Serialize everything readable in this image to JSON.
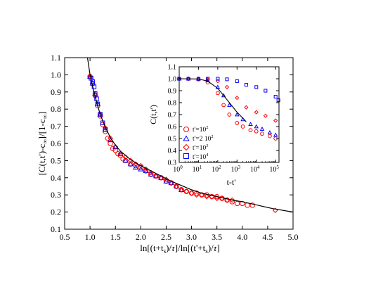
{
  "chart_data": [
    {
      "type": "scatter",
      "xlabel_svg": "ln[(t+t_s)/τ]/ln[(t'+t_s)/τ]",
      "ylabel_svg": "[C(t,t')-c_∞]/[1-c_∞]",
      "xlim": [
        0.5,
        5.0
      ],
      "ylim": [
        0.1,
        1.1
      ],
      "x_ticks": [
        "0.5",
        "1.0",
        "1.5",
        "2.0",
        "2.5",
        "3.0",
        "3.5",
        "4.0",
        "4.5",
        "5.0"
      ],
      "y_ticks": [
        "0.1",
        "0.2",
        "0.3",
        "0.4",
        "0.5",
        "0.6",
        "0.7",
        "0.8",
        "0.9",
        "1.0",
        "1.1"
      ],
      "grid": false,
      "series": [
        {
          "marker": "circle",
          "color": "#ff0000",
          "x": [
            1.0,
            1.05,
            1.1,
            1.15,
            1.2,
            1.25,
            1.3,
            1.35,
            1.4,
            1.45,
            1.5,
            1.55,
            1.6,
            1.65,
            1.7,
            1.8,
            1.9,
            2.0,
            2.1,
            2.2,
            2.3,
            2.4,
            2.5,
            2.6,
            2.7,
            2.8,
            2.9,
            3.0,
            3.1,
            3.2,
            3.3,
            3.4,
            3.5,
            3.6,
            3.7,
            3.8,
            3.9,
            4.0,
            4.1,
            4.2
          ],
          "y": [
            0.99,
            0.95,
            0.88,
            0.82,
            0.76,
            0.71,
            0.67,
            0.63,
            0.6,
            0.57,
            0.56,
            0.54,
            0.53,
            0.51,
            0.5,
            0.48,
            0.47,
            0.46,
            0.44,
            0.42,
            0.41,
            0.4,
            0.38,
            0.37,
            0.35,
            0.33,
            0.32,
            0.31,
            0.31,
            0.3,
            0.3,
            0.29,
            0.29,
            0.28,
            0.27,
            0.26,
            0.25,
            0.25,
            0.24,
            0.24
          ]
        },
        {
          "marker": "triangle",
          "color": "#0000ff",
          "x": [
            1.0,
            1.05,
            1.1,
            1.15,
            1.2,
            1.3,
            1.4,
            1.5,
            1.6,
            1.7,
            1.8,
            1.9,
            2.0,
            2.1,
            2.2,
            2.3,
            2.4,
            2.5,
            2.6,
            2.7,
            2.8
          ],
          "y": [
            0.99,
            0.95,
            0.89,
            0.83,
            0.77,
            0.68,
            0.62,
            0.58,
            0.54,
            0.5,
            0.48,
            0.46,
            0.45,
            0.44,
            0.42,
            0.41,
            0.4,
            0.38,
            0.37,
            0.35,
            0.33
          ]
        },
        {
          "marker": "diamond",
          "color": "#ff0000",
          "x": [
            1.0,
            1.1,
            1.2,
            1.3,
            1.4,
            1.5,
            1.6,
            1.7,
            1.8,
            1.9,
            2.0,
            2.1,
            2.2,
            2.3,
            2.4,
            2.5,
            2.6,
            2.7,
            2.8,
            2.9,
            3.0,
            3.1,
            3.2,
            3.3,
            3.4,
            3.5,
            3.6,
            3.7,
            3.8,
            4.65
          ],
          "y": [
            0.99,
            0.88,
            0.77,
            0.69,
            0.63,
            0.58,
            0.54,
            0.52,
            0.5,
            0.48,
            0.47,
            0.45,
            0.43,
            0.41,
            0.4,
            0.39,
            0.37,
            0.35,
            0.33,
            0.32,
            0.31,
            0.3,
            0.3,
            0.29,
            0.29,
            0.28,
            0.28,
            0.27,
            0.27,
            0.21
          ]
        },
        {
          "marker": "square",
          "color": "#0000ff",
          "x": [
            1.02,
            1.05,
            1.08,
            1.1,
            1.13,
            1.15,
            1.2,
            1.25,
            1.3
          ],
          "y": [
            0.98,
            0.96,
            0.93,
            0.89,
            0.86,
            0.83,
            0.77,
            0.72,
            0.68
          ]
        },
        {
          "marker": "line",
          "color": "#000000",
          "x": [
            0.95,
            1.0,
            1.05,
            1.1,
            1.15,
            1.2,
            1.3,
            1.4,
            1.5,
            1.6,
            1.8,
            2.0,
            2.2,
            2.4,
            2.6,
            2.8,
            3.0,
            3.2,
            3.5,
            3.8,
            4.0,
            4.3,
            4.6,
            5.0
          ],
          "y": [
            1.1,
            1.0,
            0.935,
            0.875,
            0.82,
            0.77,
            0.695,
            0.635,
            0.59,
            0.555,
            0.505,
            0.47,
            0.44,
            0.41,
            0.38,
            0.355,
            0.33,
            0.31,
            0.29,
            0.27,
            0.26,
            0.24,
            0.22,
            0.2
          ]
        }
      ]
    },
    {
      "type": "line",
      "ylabel_svg": "C(t,t')",
      "xlabel_svg": "t-t'",
      "xscale": "log",
      "xlim": [
        1,
        150000
      ],
      "ylim": [
        0.3,
        1.1
      ],
      "x_ticks_exp": [
        "0",
        "1",
        "2",
        "3",
        "4",
        "5"
      ],
      "y_ticks": [
        "0.3",
        "0.4",
        "0.5",
        "0.6",
        "0.7",
        "0.8",
        "0.9",
        "1.0",
        "1.1"
      ],
      "legend_position": "lower-left",
      "grid": false,
      "series": [
        {
          "marker": "circle",
          "color": "#ff0000",
          "x": [
            1,
            3,
            10,
            30,
            100,
            200,
            400,
            1000,
            2000,
            5000,
            10000,
            20000,
            50000,
            100000
          ],
          "y": [
            1.0,
            1.0,
            0.995,
            0.97,
            0.88,
            0.78,
            0.7,
            0.63,
            0.6,
            0.57,
            0.56,
            0.54,
            0.52,
            0.5
          ]
        },
        {
          "marker": "triangle",
          "color": "#0000ff",
          "x": [
            1,
            3,
            10,
            30,
            100,
            200,
            400,
            1000,
            2000,
            5000,
            10000,
            20000,
            50000,
            100000
          ],
          "y": [
            1.0,
            1.0,
            0.998,
            0.985,
            0.93,
            0.86,
            0.78,
            0.7,
            0.66,
            0.62,
            0.6,
            0.58,
            0.55,
            0.53
          ]
        },
        {
          "marker": "diamond",
          "color": "#ff0000",
          "x": [
            1,
            3,
            10,
            30,
            100,
            300,
            1000,
            3000,
            10000,
            30000,
            100000
          ],
          "y": [
            1.0,
            1.0,
            1.0,
            0.995,
            0.98,
            0.93,
            0.84,
            0.76,
            0.72,
            0.69,
            0.65
          ]
        },
        {
          "marker": "square",
          "color": "#0000ff",
          "x": [
            1,
            3,
            10,
            30,
            100,
            300,
            1000,
            3000,
            10000,
            30000,
            100000,
            140000
          ],
          "y": [
            1.0,
            1.0,
            1.0,
            1.0,
            1.0,
            0.995,
            0.98,
            0.95,
            0.93,
            0.9,
            0.85,
            0.82
          ]
        },
        {
          "marker": "line",
          "color": "#000000",
          "x": [
            1,
            10,
            30,
            100,
            200,
            400,
            1000,
            2000,
            3000
          ],
          "y": [
            1.0,
            0.998,
            0.98,
            0.92,
            0.86,
            0.8,
            0.72,
            0.67,
            0.64
          ]
        }
      ]
    }
  ]
}
